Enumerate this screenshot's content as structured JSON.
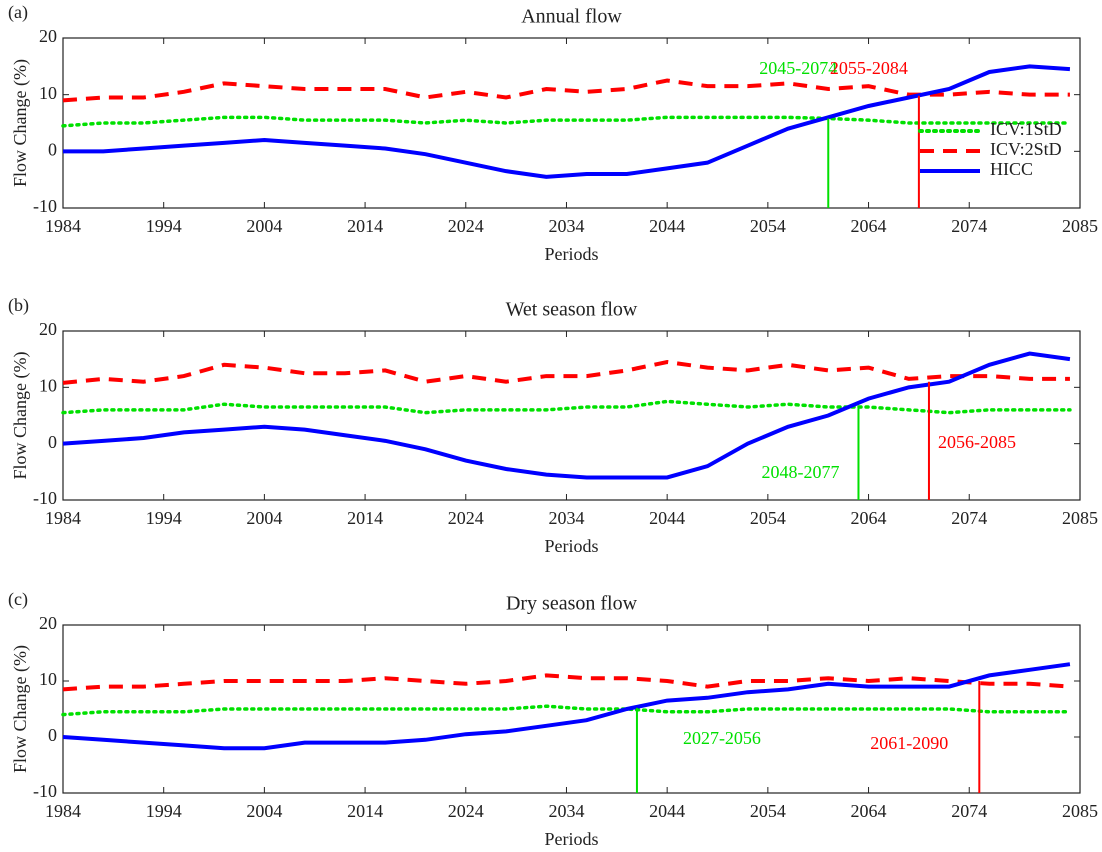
{
  "chart_data": [
    {
      "type": "line",
      "panel_label": "(a)",
      "title": "Annual flow",
      "x_label": "Periods",
      "y_label": "Flow Change (%)",
      "x": [
        1984,
        1988,
        1992,
        1996,
        2000,
        2004,
        2008,
        2012,
        2016,
        2020,
        2024,
        2028,
        2032,
        2036,
        2040,
        2044,
        2048,
        2052,
        2056,
        2060,
        2064,
        2068,
        2072,
        2076,
        2080,
        2084
      ],
      "xlim": [
        1984,
        2085
      ],
      "xticks": [
        1984,
        1994,
        2004,
        2014,
        2024,
        2034,
        2044,
        2054,
        2064,
        2074,
        2085
      ],
      "ylim": [
        -10,
        20
      ],
      "yticks": [
        -10,
        0,
        10,
        20
      ],
      "legend": "right",
      "series": [
        {
          "name": "ICV:1StD",
          "color": "#00e000",
          "line_style": "dotted",
          "values": [
            4.5,
            5,
            5,
            5.5,
            6,
            6,
            5.5,
            5.5,
            5.5,
            5,
            5.5,
            5,
            5.5,
            5.5,
            5.5,
            6,
            6,
            6,
            6,
            5.8,
            5.5,
            5,
            5,
            5,
            5,
            5
          ]
        },
        {
          "name": "ICV:2StD",
          "color": "#ff0000",
          "line_style": "dashed",
          "values": [
            9,
            9.5,
            9.5,
            10.5,
            12,
            11.5,
            11,
            11,
            11,
            9.5,
            10.5,
            9.5,
            11,
            10.5,
            11,
            12.5,
            11.5,
            11.5,
            12,
            11,
            11.5,
            10,
            10,
            10.5,
            10,
            10
          ]
        },
        {
          "name": "HICC",
          "color": "#0000ff",
          "line_style": "solid",
          "values": [
            0,
            0,
            0.5,
            1,
            1.5,
            2,
            1.5,
            1,
            0.5,
            -0.5,
            -2,
            -3.5,
            -4.5,
            -4,
            -4,
            -3,
            -2,
            1,
            4,
            6,
            8,
            9.5,
            11,
            14,
            15,
            14.5
          ]
        }
      ],
      "annotations": [
        {
          "label": "2045-2074",
          "x": 2060,
          "y": 5.8,
          "color": "#00e000"
        },
        {
          "label": "2055-2084",
          "x": 2069,
          "y": 9.8,
          "color": "#ff0000"
        }
      ]
    },
    {
      "type": "line",
      "panel_label": "(b)",
      "title": "Wet season flow",
      "x_label": "Periods",
      "y_label": "Flow Change (%)",
      "x": [
        1984,
        1988,
        1992,
        1996,
        2000,
        2004,
        2008,
        2012,
        2016,
        2020,
        2024,
        2028,
        2032,
        2036,
        2040,
        2044,
        2048,
        2052,
        2056,
        2060,
        2064,
        2068,
        2072,
        2076,
        2080,
        2084
      ],
      "xlim": [
        1984,
        2085
      ],
      "xticks": [
        1984,
        1994,
        2004,
        2014,
        2024,
        2034,
        2044,
        2054,
        2064,
        2074,
        2085
      ],
      "ylim": [
        -10,
        20
      ],
      "yticks": [
        -10,
        0,
        10,
        20
      ],
      "series": [
        {
          "name": "ICV:1StD",
          "color": "#00e000",
          "line_style": "dotted",
          "values": [
            5.5,
            6,
            6,
            6,
            7,
            6.5,
            6.5,
            6.5,
            6.5,
            5.5,
            6,
            6,
            6,
            6.5,
            6.5,
            7.5,
            7,
            6.5,
            7,
            6.5,
            6.5,
            6,
            5.5,
            6,
            6,
            6
          ]
        },
        {
          "name": "ICV:2StD",
          "color": "#ff0000",
          "line_style": "dashed",
          "values": [
            10.8,
            11.5,
            11,
            12,
            14,
            13.5,
            12.5,
            12.5,
            13,
            11,
            12,
            11,
            12,
            12,
            13,
            14.5,
            13.5,
            13,
            14,
            13,
            13.5,
            11.5,
            12,
            12,
            11.5,
            11.5
          ]
        },
        {
          "name": "HICC",
          "color": "#0000ff",
          "line_style": "solid",
          "values": [
            0,
            0.5,
            1,
            2,
            2.5,
            3,
            2.5,
            1.5,
            0.5,
            -1,
            -3,
            -4.5,
            -5.5,
            -6,
            -6,
            -6,
            -4,
            0,
            3,
            5,
            8,
            10,
            11,
            14,
            16,
            15
          ]
        }
      ],
      "annotations": [
        {
          "label": "2048-2077",
          "x": 2063,
          "y": 6.8,
          "color": "#00e000"
        },
        {
          "label": "2056-2085",
          "x": 2070,
          "y": 11,
          "color": "#ff0000"
        }
      ]
    },
    {
      "type": "line",
      "panel_label": "(c)",
      "title": "Dry season flow",
      "x_label": "Periods",
      "y_label": "Flow Change (%)",
      "x": [
        1984,
        1988,
        1992,
        1996,
        2000,
        2004,
        2008,
        2012,
        2016,
        2020,
        2024,
        2028,
        2032,
        2036,
        2040,
        2044,
        2048,
        2052,
        2056,
        2060,
        2064,
        2068,
        2072,
        2076,
        2080,
        2084
      ],
      "xlim": [
        1984,
        2085
      ],
      "xticks": [
        1984,
        1994,
        2004,
        2014,
        2024,
        2034,
        2044,
        2054,
        2064,
        2074,
        2085
      ],
      "ylim": [
        -10,
        20
      ],
      "yticks": [
        -10,
        0,
        10,
        20
      ],
      "series": [
        {
          "name": "ICV:1StD",
          "color": "#00e000",
          "line_style": "dotted",
          "values": [
            4,
            4.5,
            4.5,
            4.5,
            5,
            5,
            5,
            5,
            5,
            5,
            5,
            5,
            5.5,
            5,
            5,
            4.5,
            4.5,
            5,
            5,
            5,
            5,
            5,
            5,
            4.5,
            4.5,
            4.5
          ]
        },
        {
          "name": "ICV:2StD",
          "color": "#ff0000",
          "line_style": "dashed",
          "values": [
            8.5,
            9,
            9,
            9.5,
            10,
            10,
            10,
            10,
            10.5,
            10,
            9.5,
            10,
            11,
            10.5,
            10.5,
            10,
            9,
            10,
            10,
            10.5,
            10,
            10.5,
            10,
            9.5,
            9.5,
            9
          ]
        },
        {
          "name": "HICC",
          "color": "#0000ff",
          "line_style": "solid",
          "values": [
            0,
            -0.5,
            -1,
            -1.5,
            -2,
            -2,
            -1,
            -1,
            -1,
            -0.5,
            0.5,
            1,
            2,
            3,
            5,
            6.5,
            7,
            8,
            8.5,
            9.5,
            9,
            9,
            9,
            11,
            12,
            13
          ]
        }
      ],
      "annotations": [
        {
          "label": "2027-2056",
          "x": 2041,
          "y": 5.2,
          "color": "#00e000"
        },
        {
          "label": "2061-2090",
          "x": 2075,
          "y": 10,
          "color": "#ff0000"
        }
      ]
    }
  ]
}
